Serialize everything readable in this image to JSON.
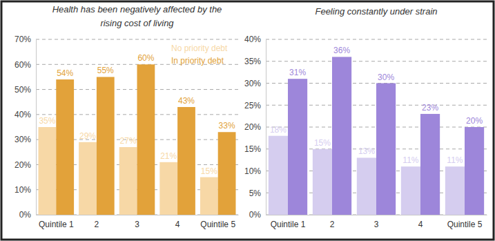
{
  "chart_data": [
    {
      "type": "bar",
      "title": "Health has been negatively affected by the rising cost of living",
      "categories": [
        "Quintile 1",
        "2",
        "3",
        "4",
        "Quintile 5"
      ],
      "series": [
        {
          "name": "No priority debt",
          "color": "#f7d8a6",
          "values": [
            35,
            29,
            27,
            21,
            15
          ],
          "value_labels": [
            "35%",
            "29%",
            "27%",
            "21%",
            "15%"
          ]
        },
        {
          "name": "In priority debt",
          "color": "#e2a23a",
          "values": [
            54,
            55,
            60,
            43,
            33
          ],
          "value_labels": [
            "54%",
            "55%",
            "60%",
            "43%",
            "33%"
          ]
        }
      ],
      "ylim": [
        0,
        70
      ],
      "yticks": [
        {
          "value": 0,
          "label": "0%"
        },
        {
          "value": 10,
          "label": "10%"
        },
        {
          "value": 20,
          "label": "20%"
        },
        {
          "value": 30,
          "label": "30%"
        },
        {
          "value": 40,
          "label": "40%"
        },
        {
          "value": 50,
          "label": "50%"
        },
        {
          "value": 60,
          "label": "60%"
        },
        {
          "value": 70,
          "label": "70%"
        }
      ],
      "grid": true,
      "legend": "upper right",
      "data_labels": true
    },
    {
      "type": "bar",
      "title": "Feeling constantly under strain",
      "categories": [
        "Quintile 1",
        "2",
        "3",
        "4",
        "Quintile 5"
      ],
      "series": [
        {
          "color": "#d5cdef",
          "values": [
            18,
            15,
            13,
            11,
            11
          ],
          "value_labels": [
            "18%",
            "15%",
            "13%",
            "11%",
            "11%"
          ]
        },
        {
          "color": "#9d86da",
          "values": [
            31,
            36,
            30,
            23,
            20
          ],
          "value_labels": [
            "31%",
            "36%",
            "30%",
            "23%",
            "20%"
          ]
        }
      ],
      "ylim": [
        0,
        40
      ],
      "yticks": [
        {
          "value": 0,
          "label": "0%"
        },
        {
          "value": 5,
          "label": "5%"
        },
        {
          "value": 10,
          "label": "10%"
        },
        {
          "value": 15,
          "label": "15%"
        },
        {
          "value": 20,
          "label": "20%"
        },
        {
          "value": 25,
          "label": "25%"
        },
        {
          "value": 30,
          "label": "30%"
        },
        {
          "value": 35,
          "label": "35%"
        },
        {
          "value": 40,
          "label": "40%"
        }
      ],
      "grid": true,
      "data_labels": true
    }
  ]
}
